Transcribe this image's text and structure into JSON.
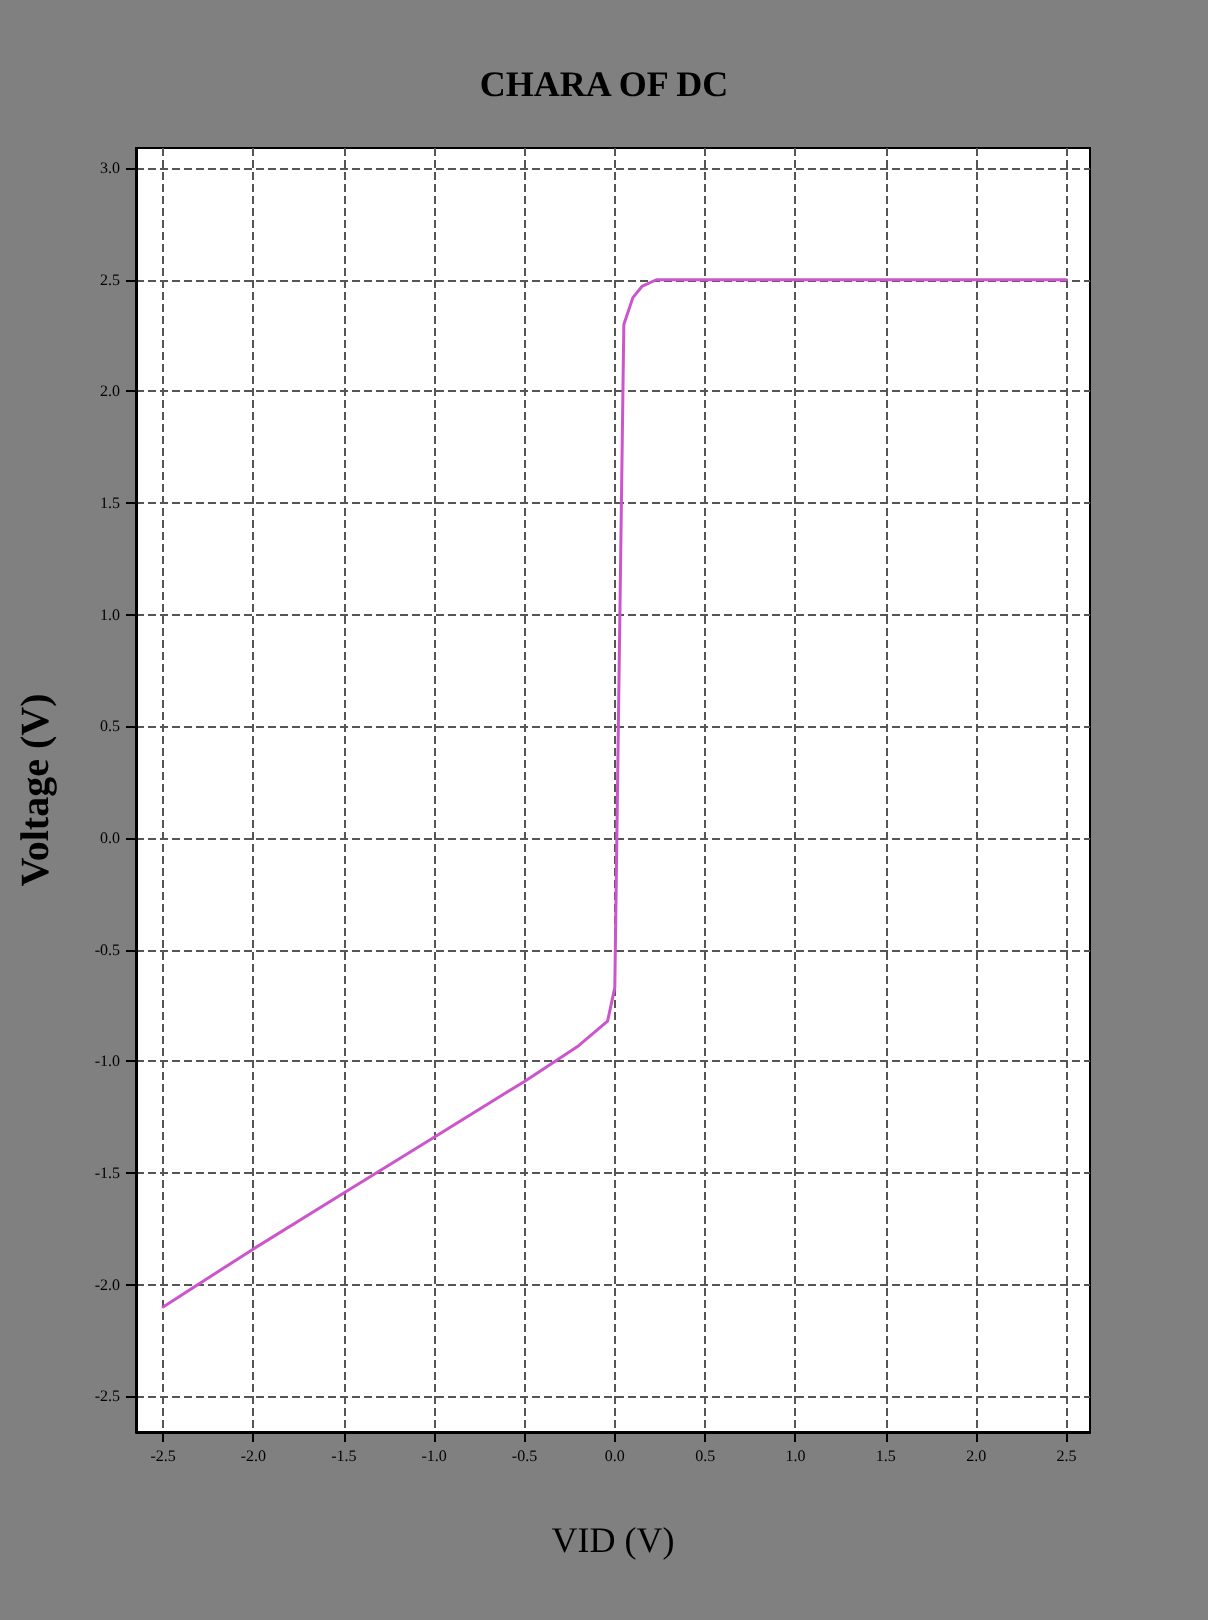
{
  "chart_data": {
    "type": "line",
    "title": "CHARA OF DC",
    "xlabel": "VID (V)",
    "ylabel": "Voltage (V)",
    "series": [
      {
        "color": "#cc55cc",
        "x": [
          -2.5,
          -2.0,
          -1.5,
          -1.0,
          -0.5,
          -0.2,
          -0.04,
          0.0,
          0.05,
          0.1,
          0.15,
          0.23,
          2.5
        ],
        "values": [
          -2.1,
          -1.84,
          -1.59,
          -1.34,
          -1.09,
          -0.93,
          -0.82,
          -0.67,
          2.3,
          2.42,
          2.47,
          2.5,
          2.5
        ]
      }
    ],
    "xlim": [
      -2.65,
      2.63
    ],
    "ylim": [
      -2.66,
      3.09
    ],
    "xticks": [
      -2.5,
      {
        "value": -2,
        "label": "-2.0"
      },
      -1.5,
      {
        "value": -1,
        "label": "-1.0"
      },
      -0.5,
      {
        "value": 0,
        "label": "0.0"
      },
      0.5,
      {
        "value": 1,
        "label": "1.0"
      },
      1.5,
      {
        "value": 2,
        "label": "2.0"
      },
      2.5
    ],
    "yticks": [
      -2.5,
      {
        "value": -2,
        "label": "-2.0"
      },
      -1.5,
      {
        "value": -1,
        "label": "-1.0"
      },
      -0.5,
      {
        "value": 0,
        "label": "0.0"
      },
      0.5,
      {
        "value": 1,
        "label": "1.0"
      },
      1.5,
      {
        "value": 2,
        "label": "2.0"
      },
      2.5,
      {
        "value": 3,
        "label": "3.0"
      }
    ],
    "grid": true,
    "marker": "none",
    "line_style": "solid"
  }
}
